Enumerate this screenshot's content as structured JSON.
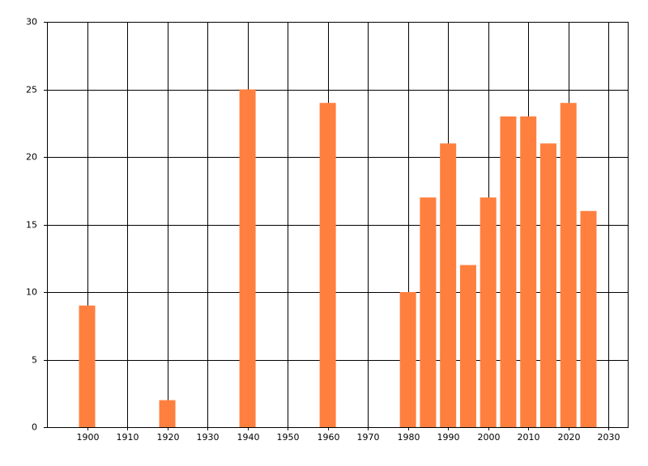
{
  "chart_data": {
    "type": "bar",
    "x": [
      1900,
      1920,
      1940,
      1960,
      1980,
      1985,
      1990,
      1995,
      2000,
      2005,
      2010,
      2015,
      2020,
      2025
    ],
    "values": [
      9,
      2,
      25,
      24,
      10,
      17,
      21,
      12,
      17,
      23,
      23,
      21,
      24,
      16
    ],
    "color": "#ff7f3f",
    "xlim": [
      1890,
      2035
    ],
    "xticks": [
      1900,
      1910,
      1920,
      1930,
      1940,
      1950,
      1960,
      1970,
      1980,
      1990,
      2000,
      2010,
      2020,
      2030
    ],
    "ylim": [
      0,
      30
    ],
    "yticks": [
      0,
      5,
      10,
      15,
      20,
      25,
      30
    ],
    "grid": true
  }
}
